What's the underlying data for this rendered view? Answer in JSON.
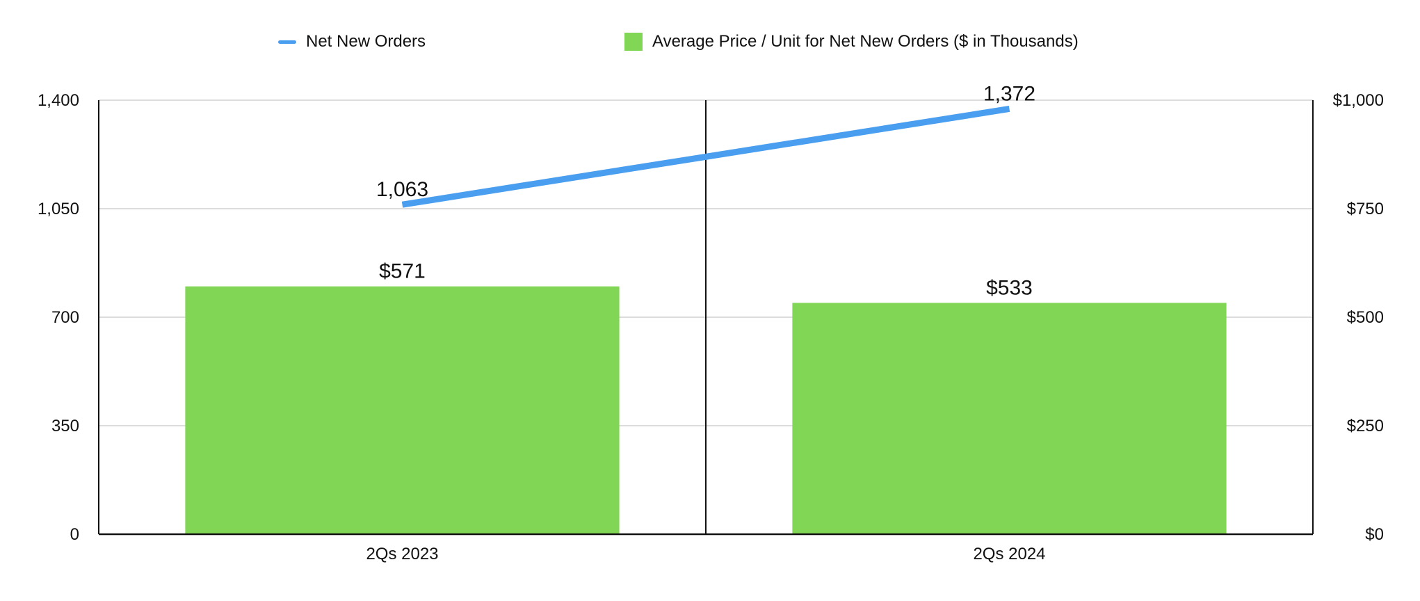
{
  "chart_data": {
    "type": "bar",
    "categories": [
      "2Qs 2023",
      "2Qs 2024"
    ],
    "series": [
      {
        "name": "Net New Orders",
        "kind": "line",
        "axis": "left",
        "values": [
          1063,
          1372
        ],
        "labels": [
          "1,063",
          "1,372"
        ],
        "color": "#4a9ef0"
      },
      {
        "name": "Average Price / Unit for Net New Orders ($ in Thousands)",
        "kind": "bar",
        "axis": "right",
        "values": [
          571,
          533
        ],
        "labels": [
          "$571",
          "$533"
        ],
        "color": "#82d656"
      }
    ],
    "y_left": {
      "range": [
        0,
        1400
      ],
      "ticks": [
        0,
        350,
        700,
        1050,
        1400
      ],
      "tick_labels": [
        "0",
        "350",
        "700",
        "1,050",
        "1,400"
      ]
    },
    "y_right": {
      "range": [
        0,
        1000
      ],
      "ticks": [
        0,
        250,
        500,
        750,
        1000
      ],
      "tick_labels": [
        "$0",
        "$250",
        "$500",
        "$750",
        "$1,000"
      ]
    },
    "grid": true,
    "legend_position": "top"
  }
}
